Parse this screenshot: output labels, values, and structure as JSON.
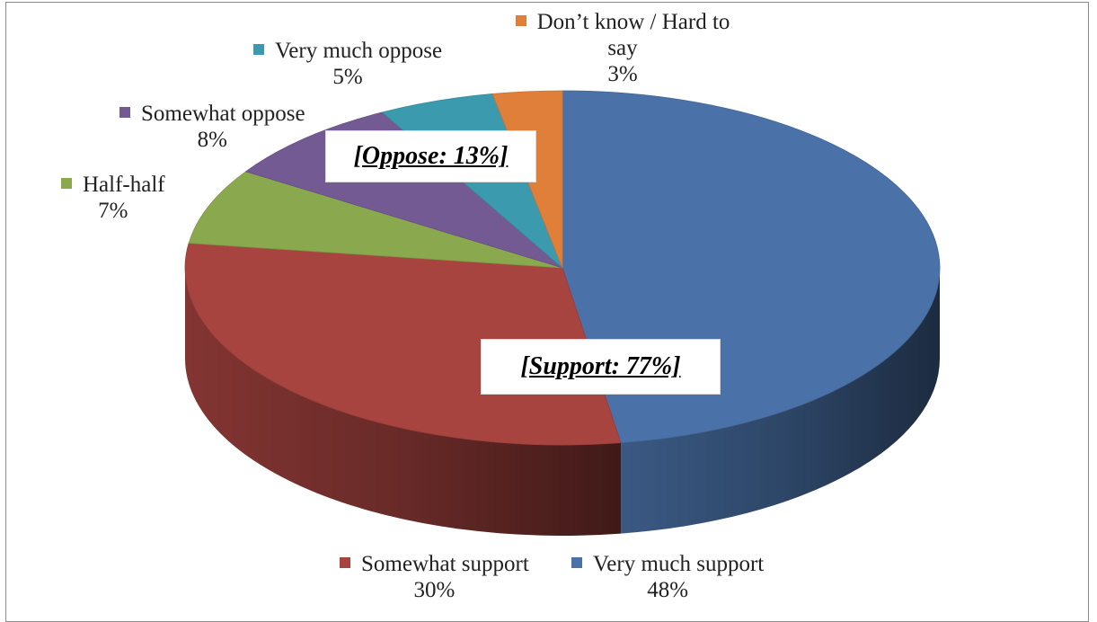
{
  "chart_data": {
    "type": "pie",
    "style": "3d",
    "slices": [
      {
        "label": "Very much support",
        "value": 48,
        "value_label": "48%",
        "color": "#4a72a8"
      },
      {
        "label": "Somewhat support",
        "value": 30,
        "value_label": "30%",
        "color": "#a84440"
      },
      {
        "label": "Half-half",
        "value": 7,
        "value_label": "7%",
        "color": "#8aa84e"
      },
      {
        "label": "Somewhat oppose",
        "value": 8,
        "value_label": "8%",
        "color": "#735a93"
      },
      {
        "label": "Very much oppose",
        "value": 5,
        "value_label": "5%",
        "color": "#3c9aae"
      },
      {
        "label": "Don’t know / Hard to say",
        "value": 3,
        "value_label": "3%",
        "color": "#e07f3a"
      }
    ],
    "annotations": [
      {
        "id": "support",
        "text": "[Support: 77%]"
      },
      {
        "id": "oppose",
        "text": "[Oppose: 13%]"
      }
    ]
  }
}
